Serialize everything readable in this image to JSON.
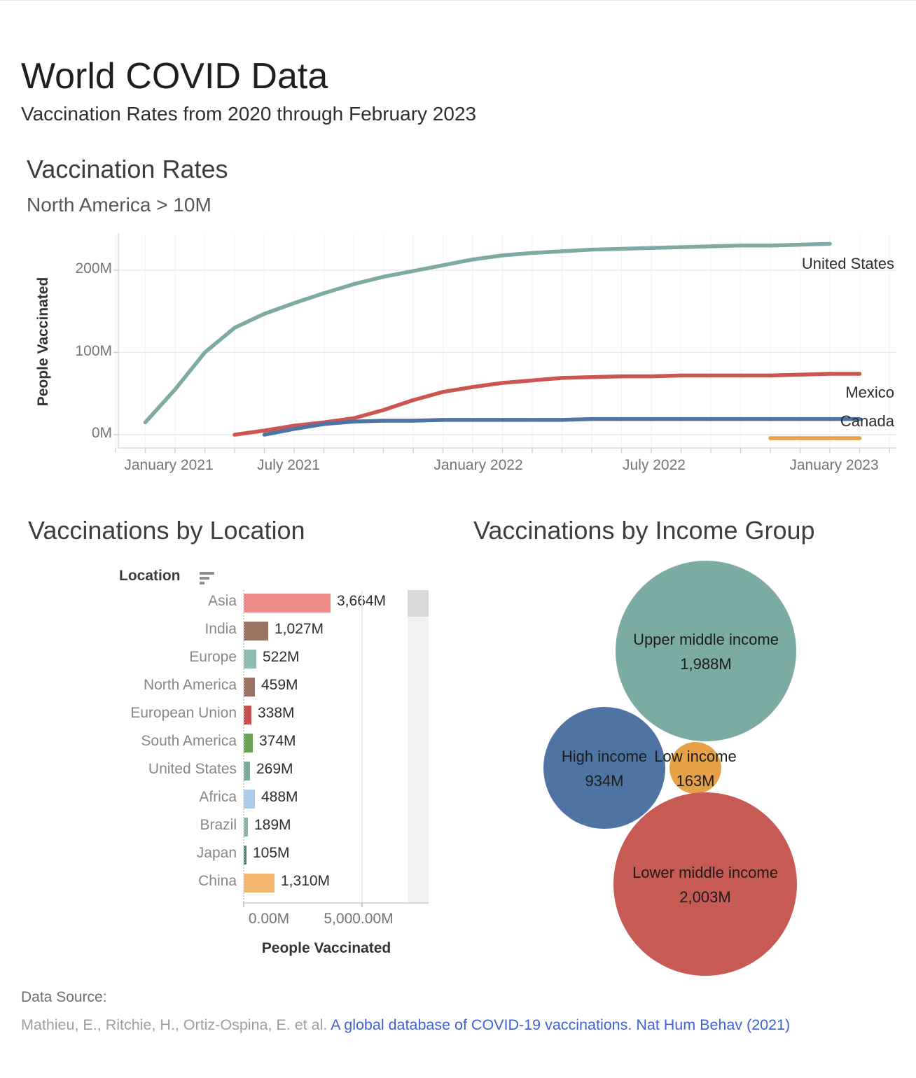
{
  "page": {
    "title": "World COVID Data",
    "subtitle": "Vaccination Rates from 2020 through February 2023"
  },
  "chart_data": [
    {
      "type": "line",
      "title": "Vaccination Rates",
      "subtitle": "North America > 10M",
      "ylabel": "People Vaccinated",
      "ylim": [
        0,
        240
      ],
      "y_ticks": [
        "0M",
        "100M",
        "200M"
      ],
      "x_ticks": [
        "January 2021",
        "July 2021",
        "January 2022",
        "July 2022",
        "January 2023"
      ],
      "grid": "horizontal",
      "legend_position": "end-of-line",
      "unit": "millions of people",
      "series": [
        {
          "name": "United States",
          "color": "#7daba3",
          "start_month": "2021-02",
          "values": [
            15,
            55,
            100,
            130,
            147,
            160,
            172,
            183,
            192,
            199,
            206,
            213,
            218,
            221,
            223,
            225,
            226,
            227,
            228,
            229,
            230,
            230,
            231,
            232
          ]
        },
        {
          "name": "Mexico",
          "color": "#cb5551",
          "start_month": "2021-05",
          "values": [
            0,
            5,
            11,
            15,
            20,
            30,
            42,
            52,
            58,
            63,
            66,
            69,
            70,
            71,
            71,
            72,
            72,
            72,
            72,
            73,
            74,
            74
          ]
        },
        {
          "name": "Canada",
          "color": "#4d74a4",
          "start_month": "2021-06",
          "values": [
            0,
            7,
            13,
            16,
            17,
            17,
            18,
            18,
            18,
            18,
            18,
            19,
            19,
            19,
            19,
            19,
            19,
            19,
            19,
            19,
            19
          ]
        },
        {
          "name": "",
          "color": "#e6a046",
          "start_month": "2022-11",
          "values": [
            0,
            0,
            0,
            0
          ]
        }
      ]
    },
    {
      "type": "bar",
      "title": "Vaccinations by Location",
      "column_header": "Location",
      "xlabel": "People Vaccinated",
      "x_ticks": [
        "0.00M",
        "5,000.00M"
      ],
      "xlim": [
        0,
        5000
      ],
      "categories": [
        "Asia",
        "India",
        "Europe",
        "North America",
        "European Union",
        "South America",
        "United States",
        "Africa",
        "Brazil",
        "Japan",
        "China"
      ],
      "values": [
        3664,
        1027,
        522,
        459,
        338,
        374,
        269,
        488,
        189,
        105,
        1310
      ],
      "value_labels": [
        "3,664M",
        "1,027M",
        "522M",
        "459M",
        "338M",
        "374M",
        "269M",
        "488M",
        "189M",
        "105M",
        "1,310M"
      ],
      "bar_colors": [
        "#ec8b86",
        "#9c7362",
        "#8dbcb4",
        "#9c7362",
        "#c8504e",
        "#6aa356",
        "#7cab9f",
        "#accbe9",
        "#86b5aa",
        "#4f837c",
        "#f2b66f"
      ]
    },
    {
      "type": "bubble",
      "title": "Vaccinations by Income Group",
      "unit": "millions of people",
      "groups": [
        {
          "name": "Upper middle income",
          "value": 1988,
          "value_label": "1,988M",
          "color": "#7caba3"
        },
        {
          "name": "High income",
          "value": 934,
          "value_label": "934M",
          "color": "#4f74a3"
        },
        {
          "name": "Low income",
          "value": 163,
          "value_label": "163M",
          "color": "#e6a147"
        },
        {
          "name": "Lower middle income",
          "value": 2003,
          "value_label": "2,003M",
          "color": "#c85a55"
        }
      ]
    }
  ],
  "footer": {
    "label": "Data Source:",
    "citation_plain": "Mathieu, E., Ritchie, H., Ortiz-Ospina, E. et al. ",
    "citation_link": "A global database of COVID-19 vaccinations. Nat Hum Behav (2021)"
  }
}
